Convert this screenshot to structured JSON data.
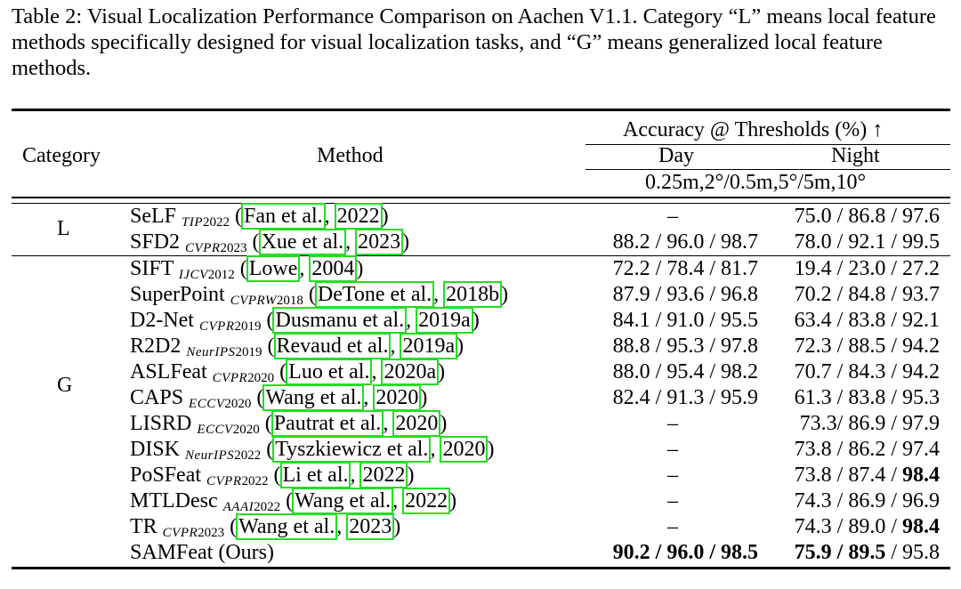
{
  "caption": "Table 2: Visual Localization Performance Comparison on Aachen V1.1. Category “L” means local feature methods specifically designed for visual localization tasks, and “G” means generalized local feature methods.",
  "header": {
    "category": "Category",
    "method": "Method",
    "accuracy": "Accuracy @ Thresholds (%) ↑",
    "day": "Day",
    "night": "Night",
    "thresholds": "0.25m,2°/0.5m,5°/5m,10°"
  },
  "groups": [
    {
      "label": "L"
    },
    {
      "label": "G"
    }
  ],
  "rows": [
    {
      "name": "SeLF",
      "venue": "TIP",
      "year": "2022",
      "cite_author": "Fan et al.",
      "cite_year": "2022",
      "day": "–",
      "night": "75.0 / 86.8 / 97.6"
    },
    {
      "name": "SFD2",
      "venue": "CVPR",
      "year": "2023",
      "cite_author": "Xue et al.",
      "cite_year": "2023",
      "day": "88.2 / 96.0 / 98.7",
      "night": "78.0 / 92.1 / 99.5"
    },
    {
      "name": "SIFT",
      "venue": "IJCV",
      "year": "2012",
      "cite_author": "Lowe",
      "cite_year": "2004",
      "day": "72.2 / 78.4 / 81.7",
      "night": "19.4 / 23.0 / 27.2"
    },
    {
      "name": "SuperPoint",
      "venue": "CVPRW",
      "year": "2018",
      "cite_author": "DeTone et al.",
      "cite_year": "2018b",
      "day": "87.9 / 93.6 / 96.8",
      "night": "70.2 / 84.8 / 93.7"
    },
    {
      "name": "D2-Net",
      "venue": "CVPR",
      "year": "2019",
      "cite_author": "Dusmanu et al.",
      "cite_year": "2019a",
      "day": "84.1 / 91.0 / 95.5",
      "night": "63.4 / 83.8 / 92.1"
    },
    {
      "name": "R2D2",
      "venue": "NeurIPS",
      "year": "2019",
      "cite_author": "Revaud et al.",
      "cite_year": "2019a",
      "day": "88.8 / 95.3 / 97.8",
      "night": "72.3 / 88.5 / 94.2"
    },
    {
      "name": "ASLFeat",
      "venue": "CVPR",
      "year": "2020",
      "cite_author": "Luo et al.",
      "cite_year": "2020a",
      "day": "88.0 / 95.4 / 98.2",
      "night": "70.7 / 84.3 / 94.2"
    },
    {
      "name": "CAPS",
      "venue": "ECCV",
      "year": "2020",
      "cite_author": "Wang et al.",
      "cite_year": "2020",
      "day": "82.4 / 91.3 / 95.9",
      "night": "61.3 / 83.8 / 95.3"
    },
    {
      "name": "LISRD",
      "venue": "ECCV",
      "year": "2020",
      "cite_author": "Pautrat et al.",
      "cite_year": "2020",
      "day": "–",
      "night": "73.3/ 86.9 / 97.9"
    },
    {
      "name": "DISK",
      "venue": "NeurIPS",
      "year": "2022",
      "cite_author": "Tyszkiewicz et al.",
      "cite_year": "2020",
      "day": "–",
      "night": "73.8 / 86.2 / 97.4"
    },
    {
      "name": "PoSFeat",
      "venue": "CVPR",
      "year": "2022",
      "cite_author": "Li et al.",
      "cite_year": "2022",
      "day": "–",
      "night_a": "73.8 / 87.4 / ",
      "night_b": "98.4"
    },
    {
      "name": "MTLDesc",
      "venue": "AAAI",
      "year": "2022",
      "cite_author": "Wang et al.",
      "cite_year": "2022",
      "day": "–",
      "night": "74.3 / 86.9 / 96.9"
    },
    {
      "name": "TR",
      "venue": "CVPR",
      "year": "2023",
      "cite_author": "Wang et al.",
      "cite_year": "2023",
      "day": "–",
      "night_a": "74.3 / 89.0 / ",
      "night_b": "98.4"
    },
    {
      "name": "SAMFeat (Ours)",
      "day_bold": "90.2 / 96.0 / 98.5",
      "night_bold": "75.9 / 89.5",
      "night_rest": " / 95.8"
    }
  ]
}
